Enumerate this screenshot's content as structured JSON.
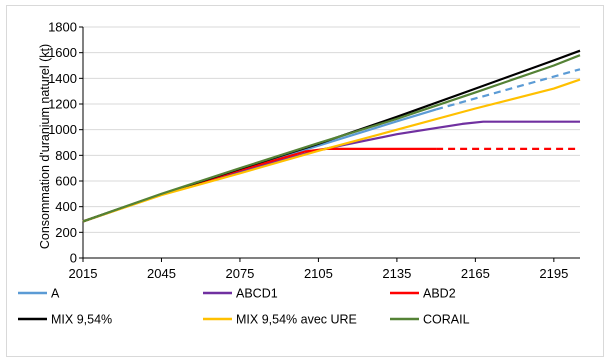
{
  "chart_data": {
    "type": "line",
    "title": "",
    "xlabel": "",
    "ylabel": "Consommation d'uranium naturel (kt)",
    "xlim": [
      2015,
      2205
    ],
    "ylim": [
      0,
      1800
    ],
    "xticks": [
      "2015",
      "2045",
      "2075",
      "2105",
      "2135",
      "2165",
      "2195"
    ],
    "yticks": [
      "0",
      "200",
      "400",
      "600",
      "800",
      "1000",
      "1200",
      "1400",
      "1600",
      "1800"
    ],
    "grid": "horizontal",
    "legend_position": "bottom",
    "series": [
      {
        "name": "A",
        "color": "#5b9bd5",
        "solid": [
          [
            2015,
            285
          ],
          [
            2045,
            495
          ],
          [
            2075,
            690
          ],
          [
            2105,
            875
          ],
          [
            2135,
            1065
          ],
          [
            2150,
            1158
          ]
        ],
        "dashed": [
          [
            2150,
            1158
          ],
          [
            2205,
            1470
          ]
        ]
      },
      {
        "name": "ABCD1",
        "color": "#7030a0",
        "solid": [
          [
            2015,
            285
          ],
          [
            2045,
            495
          ],
          [
            2075,
            675
          ],
          [
            2105,
            840
          ],
          [
            2135,
            965
          ],
          [
            2160,
            1045
          ],
          [
            2168,
            1062
          ],
          [
            2205,
            1062
          ]
        ],
        "dashed": []
      },
      {
        "name": "ABD2",
        "color": "#ff0000",
        "solid": [
          [
            2015,
            285
          ],
          [
            2045,
            495
          ],
          [
            2075,
            685
          ],
          [
            2100,
            830
          ],
          [
            2108,
            850
          ],
          [
            2150,
            850
          ]
        ],
        "dashed": [
          [
            2150,
            850
          ],
          [
            2205,
            850
          ]
        ]
      },
      {
        "name": "MIX 9,54%",
        "color": "#000000",
        "solid": [
          [
            2015,
            285
          ],
          [
            2045,
            497
          ],
          [
            2075,
            695
          ],
          [
            2105,
            890
          ],
          [
            2135,
            1100
          ],
          [
            2165,
            1320
          ],
          [
            2195,
            1540
          ],
          [
            2205,
            1615
          ]
        ],
        "dashed": []
      },
      {
        "name": "MIX 9,54% avec URE",
        "color": "#ffc000",
        "solid": [
          [
            2015,
            285
          ],
          [
            2045,
            490
          ],
          [
            2075,
            660
          ],
          [
            2105,
            835
          ],
          [
            2135,
            1000
          ],
          [
            2165,
            1165
          ],
          [
            2195,
            1320
          ],
          [
            2205,
            1390
          ]
        ],
        "dashed": []
      },
      {
        "name": "CORAIL",
        "color": "#548235",
        "solid": [
          [
            2015,
            285
          ],
          [
            2045,
            500
          ],
          [
            2075,
            700
          ],
          [
            2105,
            895
          ],
          [
            2135,
            1085
          ],
          [
            2165,
            1290
          ],
          [
            2195,
            1500
          ],
          [
            2205,
            1580
          ]
        ],
        "dashed": []
      }
    ]
  }
}
